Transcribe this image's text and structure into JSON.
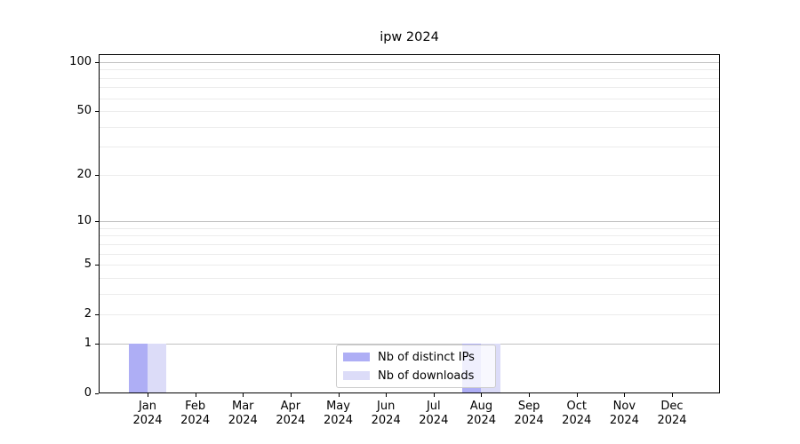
{
  "chart_data": {
    "type": "bar",
    "title": "ipw 2024",
    "categories": [
      "Jan 2024",
      "Feb 2024",
      "Mar 2024",
      "Apr 2024",
      "May 2024",
      "Jun 2024",
      "Jul 2024",
      "Aug 2024",
      "Sep 2024",
      "Oct 2024",
      "Nov 2024",
      "Dec 2024"
    ],
    "series": [
      {
        "name": "Nb of distinct IPs",
        "color": "#aeaef5",
        "values": [
          1,
          0,
          0,
          0,
          0,
          0,
          0,
          1,
          0,
          0,
          0,
          0
        ]
      },
      {
        "name": "Nb of downloads",
        "color": "#dcdcf8",
        "values": [
          1,
          0,
          0,
          0,
          0,
          0,
          0,
          1,
          0,
          0,
          0,
          0
        ]
      }
    ],
    "yscale": "log1p",
    "ylim": [
      0,
      112
    ],
    "yticks": [
      0,
      1,
      2,
      5,
      10,
      20,
      50,
      100
    ],
    "y_major_gridlines": [
      1,
      10,
      100
    ],
    "y_minor_gridlines": [
      2,
      3,
      4,
      5,
      6,
      7,
      8,
      9,
      20,
      30,
      40,
      50,
      60,
      70,
      80,
      90
    ],
    "grid_major_color": "#c2c2c2",
    "grid_minor_color": "#ececec",
    "axis_color": "#000000",
    "legend_border_color": "#cccccc",
    "legend_position": "lower center",
    "background_color": "#ffffff"
  }
}
